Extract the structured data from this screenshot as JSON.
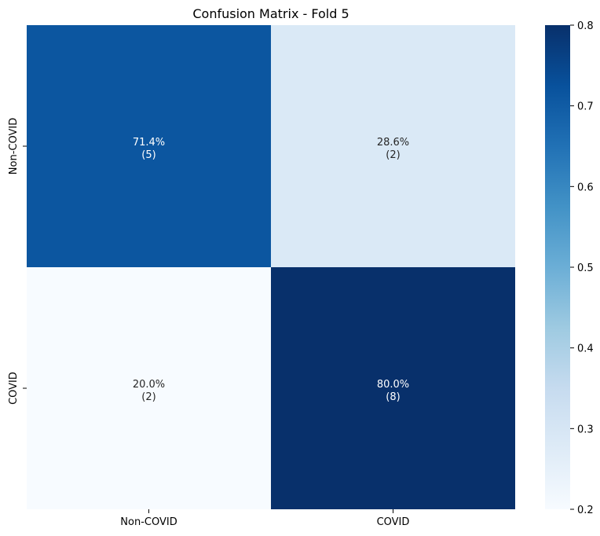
{
  "chart_data": {
    "type": "heatmap",
    "title": "Confusion Matrix - Fold 5",
    "xlabel": "",
    "ylabel": "",
    "x_categories": [
      "Non-COVID",
      "COVID"
    ],
    "y_categories": [
      "Non-COVID",
      "COVID"
    ],
    "values": [
      [
        0.714,
        0.286
      ],
      [
        0.2,
        0.8
      ]
    ],
    "cell_labels": [
      [
        {
          "pct": "71.4%",
          "count": "(5)"
        },
        {
          "pct": "28.6%",
          "count": "(2)"
        }
      ],
      [
        {
          "pct": "20.0%",
          "count": "(2)"
        },
        {
          "pct": "80.0%",
          "count": "(8)"
        }
      ]
    ],
    "colorbar": {
      "min": 0.2,
      "max": 0.8,
      "ticks": [
        "0.2",
        "0.3",
        "0.4",
        "0.5",
        "0.6",
        "0.7",
        "0.8"
      ],
      "colormap": "Blues"
    },
    "grid": false
  }
}
